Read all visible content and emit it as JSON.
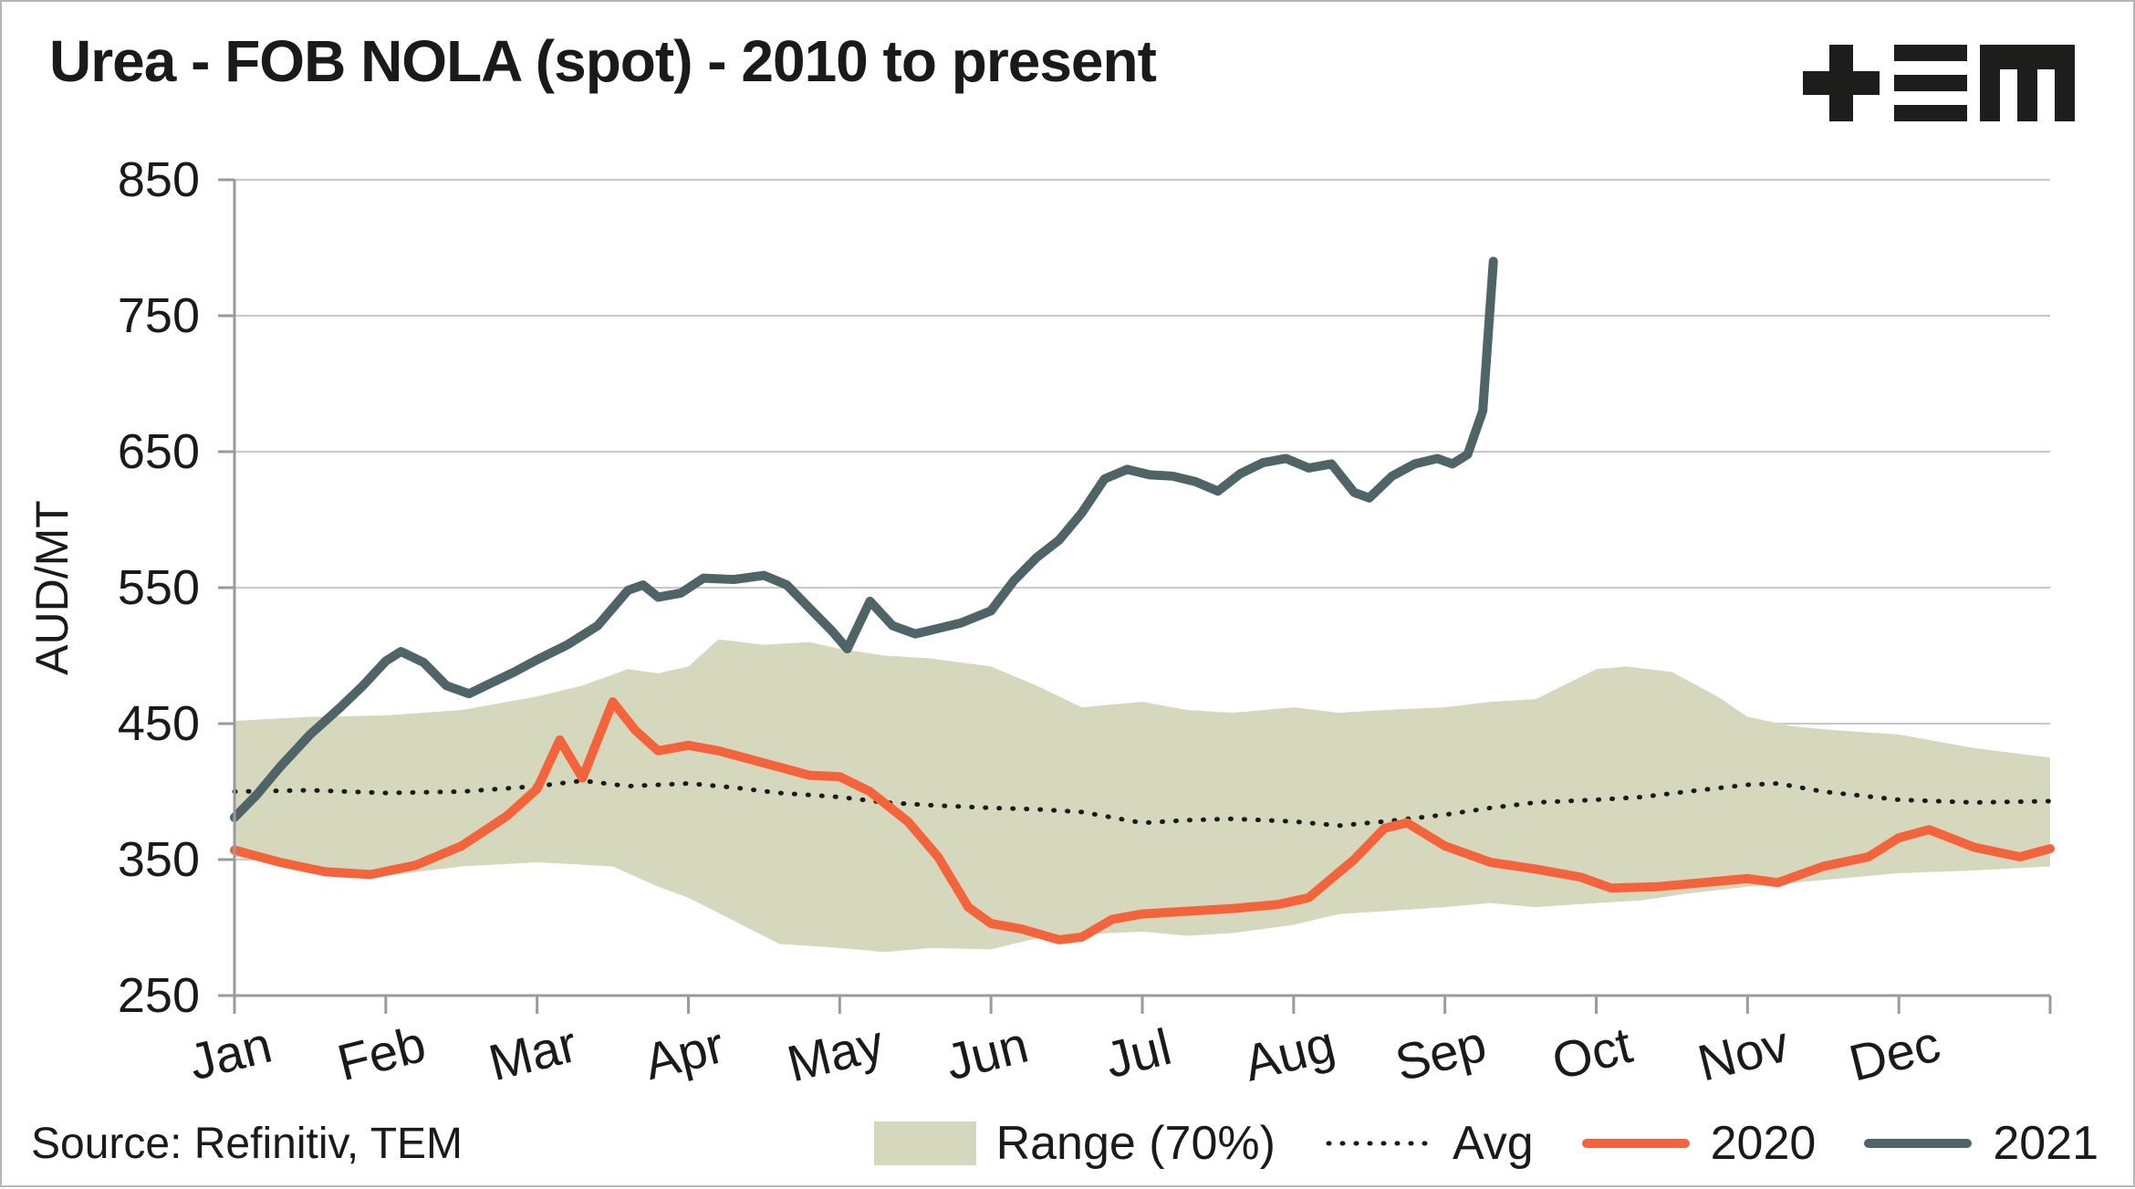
{
  "title": "Urea - FOB NOLA (spot) - 2010 to present",
  "source": "Source: Refinitiv, TEM",
  "logo_name": "tem-logo",
  "legend": {
    "range_label": "Range (70%)",
    "avg_label": "Avg",
    "y2020_label": "2020",
    "y2021_label": "2021"
  },
  "colors": {
    "band": "#d6d8bd",
    "avg": "#1a1a1a",
    "y2020": "#f4643c",
    "y2021": "#4e6467",
    "axis": "#9a9a9a",
    "grid": "#c9c9c9",
    "logo": "#1d1d1b"
  },
  "chart_data": {
    "type": "line",
    "title": "Urea - FOB NOLA (spot) - 2010 to present",
    "xlabel": "",
    "ylabel": "AUD/MT",
    "ylim": [
      250,
      850
    ],
    "yticks": [
      250,
      350,
      450,
      550,
      650,
      750,
      850
    ],
    "x_unit": "month (0 = Jan 1, 12 = Dec 31)",
    "x_months": [
      "Jan",
      "Feb",
      "Mar",
      "Apr",
      "May",
      "Jun",
      "Jul",
      "Aug",
      "Sep",
      "Oct",
      "Nov",
      "Dec"
    ],
    "grid": "horizontal",
    "legend_position": "bottom",
    "band": {
      "name": "Range (70%)",
      "upper": [
        [
          0,
          452
        ],
        [
          0.5,
          455
        ],
        [
          1,
          456
        ],
        [
          1.5,
          460
        ],
        [
          2,
          470
        ],
        [
          2.3,
          478
        ],
        [
          2.6,
          490
        ],
        [
          2.8,
          487
        ],
        [
          3,
          492
        ],
        [
          3.2,
          512
        ],
        [
          3.5,
          508
        ],
        [
          3.8,
          510
        ],
        [
          4,
          505
        ],
        [
          4.3,
          500
        ],
        [
          4.6,
          498
        ],
        [
          5,
          492
        ],
        [
          5.3,
          478
        ],
        [
          5.6,
          462
        ],
        [
          6,
          466
        ],
        [
          6.3,
          460
        ],
        [
          6.6,
          458
        ],
        [
          7,
          462
        ],
        [
          7.3,
          458
        ],
        [
          7.6,
          460
        ],
        [
          8,
          462
        ],
        [
          8.3,
          466
        ],
        [
          8.6,
          468
        ],
        [
          9,
          490
        ],
        [
          9.2,
          492
        ],
        [
          9.5,
          488
        ],
        [
          9.8,
          470
        ],
        [
          10,
          455
        ],
        [
          10.3,
          448
        ],
        [
          10.6,
          445
        ],
        [
          11,
          442
        ],
        [
          11.5,
          432
        ],
        [
          12,
          425
        ]
      ],
      "lower": [
        [
          0,
          352
        ],
        [
          0.5,
          342
        ],
        [
          1,
          338
        ],
        [
          1.5,
          345
        ],
        [
          2,
          348
        ],
        [
          2.5,
          345
        ],
        [
          2.8,
          330
        ],
        [
          3,
          322
        ],
        [
          3.3,
          305
        ],
        [
          3.6,
          288
        ],
        [
          4,
          285
        ],
        [
          4.3,
          282
        ],
        [
          4.6,
          285
        ],
        [
          5,
          284
        ],
        [
          5.3,
          292
        ],
        [
          5.6,
          295
        ],
        [
          6,
          297
        ],
        [
          6.3,
          294
        ],
        [
          6.6,
          296
        ],
        [
          7,
          302
        ],
        [
          7.3,
          310
        ],
        [
          7.6,
          312
        ],
        [
          8,
          315
        ],
        [
          8.3,
          318
        ],
        [
          8.6,
          315
        ],
        [
          9,
          318
        ],
        [
          9.3,
          320
        ],
        [
          9.6,
          325
        ],
        [
          10,
          330
        ],
        [
          10.5,
          335
        ],
        [
          11,
          340
        ],
        [
          11.5,
          342
        ],
        [
          12,
          345
        ]
      ]
    },
    "series": [
      {
        "name": "Avg",
        "style": "dotted",
        "width": 5,
        "points": [
          [
            0,
            400
          ],
          [
            0.5,
            401
          ],
          [
            1,
            399
          ],
          [
            1.5,
            400
          ],
          [
            2,
            404
          ],
          [
            2.3,
            408
          ],
          [
            2.6,
            404
          ],
          [
            3,
            406
          ],
          [
            3.3,
            403
          ],
          [
            3.6,
            399
          ],
          [
            4,
            396
          ],
          [
            4.3,
            392
          ],
          [
            4.6,
            390
          ],
          [
            5,
            388
          ],
          [
            5.3,
            387
          ],
          [
            5.6,
            385
          ],
          [
            6,
            377
          ],
          [
            6.3,
            379
          ],
          [
            6.6,
            380
          ],
          [
            7,
            378
          ],
          [
            7.3,
            375
          ],
          [
            7.6,
            378
          ],
          [
            8,
            383
          ],
          [
            8.3,
            388
          ],
          [
            8.6,
            392
          ],
          [
            9,
            394
          ],
          [
            9.3,
            396
          ],
          [
            9.6,
            400
          ],
          [
            10,
            405
          ],
          [
            10.2,
            406
          ],
          [
            10.5,
            400
          ],
          [
            11,
            394
          ],
          [
            11.5,
            392
          ],
          [
            12,
            393
          ]
        ]
      },
      {
        "name": "2020",
        "style": "solid",
        "width": 10,
        "points": [
          [
            0,
            357
          ],
          [
            0.3,
            348
          ],
          [
            0.6,
            341
          ],
          [
            0.9,
            339
          ],
          [
            1.2,
            346
          ],
          [
            1.5,
            360
          ],
          [
            1.8,
            382
          ],
          [
            2,
            402
          ],
          [
            2.15,
            438
          ],
          [
            2.3,
            410
          ],
          [
            2.5,
            466
          ],
          [
            2.65,
            445
          ],
          [
            2.8,
            430
          ],
          [
            3,
            434
          ],
          [
            3.2,
            430
          ],
          [
            3.5,
            421
          ],
          [
            3.8,
            412
          ],
          [
            4,
            411
          ],
          [
            4.2,
            400
          ],
          [
            4.45,
            378
          ],
          [
            4.65,
            352
          ],
          [
            4.85,
            315
          ],
          [
            5,
            303
          ],
          [
            5.2,
            299
          ],
          [
            5.45,
            291
          ],
          [
            5.6,
            293
          ],
          [
            5.8,
            306
          ],
          [
            6,
            310
          ],
          [
            6.3,
            312
          ],
          [
            6.6,
            314
          ],
          [
            6.9,
            317
          ],
          [
            7.1,
            322
          ],
          [
            7.4,
            350
          ],
          [
            7.6,
            373
          ],
          [
            7.75,
            377
          ],
          [
            8,
            360
          ],
          [
            8.3,
            348
          ],
          [
            8.6,
            343
          ],
          [
            8.9,
            337
          ],
          [
            9.1,
            329
          ],
          [
            9.4,
            330
          ],
          [
            9.7,
            333
          ],
          [
            10,
            336
          ],
          [
            10.2,
            333
          ],
          [
            10.5,
            345
          ],
          [
            10.8,
            352
          ],
          [
            11,
            366
          ],
          [
            11.2,
            372
          ],
          [
            11.5,
            359
          ],
          [
            11.8,
            352
          ],
          [
            12,
            358
          ]
        ]
      },
      {
        "name": "2021",
        "style": "solid",
        "width": 10,
        "points": [
          [
            0,
            381
          ],
          [
            0.15,
            398
          ],
          [
            0.3,
            418
          ],
          [
            0.5,
            442
          ],
          [
            0.7,
            462
          ],
          [
            0.85,
            478
          ],
          [
            1,
            496
          ],
          [
            1.1,
            503
          ],
          [
            1.25,
            495
          ],
          [
            1.4,
            478
          ],
          [
            1.55,
            472
          ],
          [
            1.7,
            480
          ],
          [
            1.85,
            488
          ],
          [
            2,
            497
          ],
          [
            2.2,
            508
          ],
          [
            2.4,
            522
          ],
          [
            2.6,
            548
          ],
          [
            2.7,
            552
          ],
          [
            2.8,
            543
          ],
          [
            2.95,
            546
          ],
          [
            3.1,
            557
          ],
          [
            3.3,
            556
          ],
          [
            3.5,
            559
          ],
          [
            3.65,
            552
          ],
          [
            3.8,
            535
          ],
          [
            3.95,
            518
          ],
          [
            4.05,
            505
          ],
          [
            4.2,
            540
          ],
          [
            4.35,
            522
          ],
          [
            4.5,
            516
          ],
          [
            4.65,
            520
          ],
          [
            4.8,
            524
          ],
          [
            5,
            533
          ],
          [
            5.15,
            555
          ],
          [
            5.3,
            572
          ],
          [
            5.45,
            585
          ],
          [
            5.6,
            605
          ],
          [
            5.75,
            630
          ],
          [
            5.9,
            637
          ],
          [
            6.05,
            633
          ],
          [
            6.2,
            632
          ],
          [
            6.35,
            628
          ],
          [
            6.5,
            621
          ],
          [
            6.65,
            634
          ],
          [
            6.8,
            642
          ],
          [
            6.95,
            645
          ],
          [
            7.1,
            638
          ],
          [
            7.25,
            641
          ],
          [
            7.4,
            620
          ],
          [
            7.5,
            616
          ],
          [
            7.65,
            632
          ],
          [
            7.8,
            641
          ],
          [
            7.95,
            645
          ],
          [
            8.05,
            641
          ],
          [
            8.15,
            648
          ],
          [
            8.25,
            680
          ],
          [
            8.32,
            790
          ]
        ]
      }
    ]
  }
}
